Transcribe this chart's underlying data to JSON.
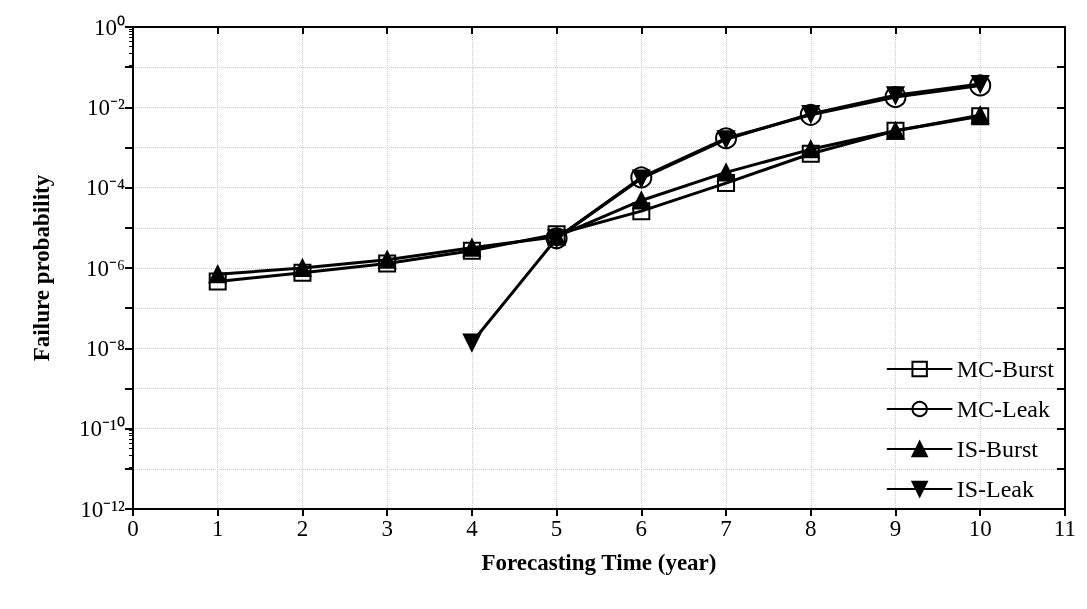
{
  "chart_data": {
    "type": "line",
    "xlabel": "Forecasting Time (year)",
    "ylabel": "Failure probability",
    "x": [
      1,
      2,
      3,
      4,
      5,
      6,
      7,
      8,
      9,
      10
    ],
    "series": [
      {
        "name": "MC-Burst",
        "color": "#000000",
        "marker": "square",
        "values": [
          4.6e-07,
          7.6e-07,
          1.3e-06,
          2.7e-06,
          6.9e-06,
          2.6e-05,
          0.00013,
          0.0007,
          0.0026,
          0.006
        ]
      },
      {
        "name": "MC-Leak",
        "color": "#000000",
        "marker": "circle",
        "values": [
          null,
          null,
          null,
          null,
          5.5e-06,
          0.00018,
          0.0017,
          0.0065,
          0.018,
          0.035
        ]
      },
      {
        "name": "IS-Burst",
        "color": "#000000",
        "marker": "triangle",
        "values": [
          7e-07,
          1e-06,
          1.6e-06,
          3.2e-06,
          6e-06,
          4.8e-05,
          0.00024,
          0.0009,
          0.0026,
          0.0064
        ]
      },
      {
        "name": "IS-Leak",
        "color": "#000000",
        "marker": "triangle-down",
        "values": [
          null,
          null,
          null,
          1.4e-08,
          5.5e-06,
          0.00017,
          0.0016,
          0.0068,
          0.02,
          0.038
        ]
      }
    ],
    "log": "y",
    "xlim": [
      0,
      11
    ],
    "xticks": [
      0,
      1,
      2,
      3,
      4,
      5,
      6,
      7,
      8,
      9,
      10,
      11
    ],
    "ylim": [
      1e-12,
      1
    ],
    "yticks": [
      {
        "value": 1e-12,
        "label": "10⁻¹²"
      },
      {
        "value": 1e-11,
        "label": null
      },
      {
        "value": 1e-10,
        "label": "10⁻¹⁰"
      },
      {
        "value": 1e-09,
        "label": null
      },
      {
        "value": 1e-08,
        "label": "10⁻⁸"
      },
      {
        "value": 1e-07,
        "label": null
      },
      {
        "value": 1e-06,
        "label": "10⁻⁶"
      },
      {
        "value": 1e-05,
        "label": null
      },
      {
        "value": 0.0001,
        "label": "10⁻⁴"
      },
      {
        "value": 0.001,
        "label": null
      },
      {
        "value": 0.01,
        "label": "10⁻²"
      },
      {
        "value": 0.1,
        "label": null
      },
      {
        "value": 1,
        "label": "10⁰"
      }
    ],
    "grid": true,
    "legend": "bottom right",
    "line_style": "solid"
  }
}
